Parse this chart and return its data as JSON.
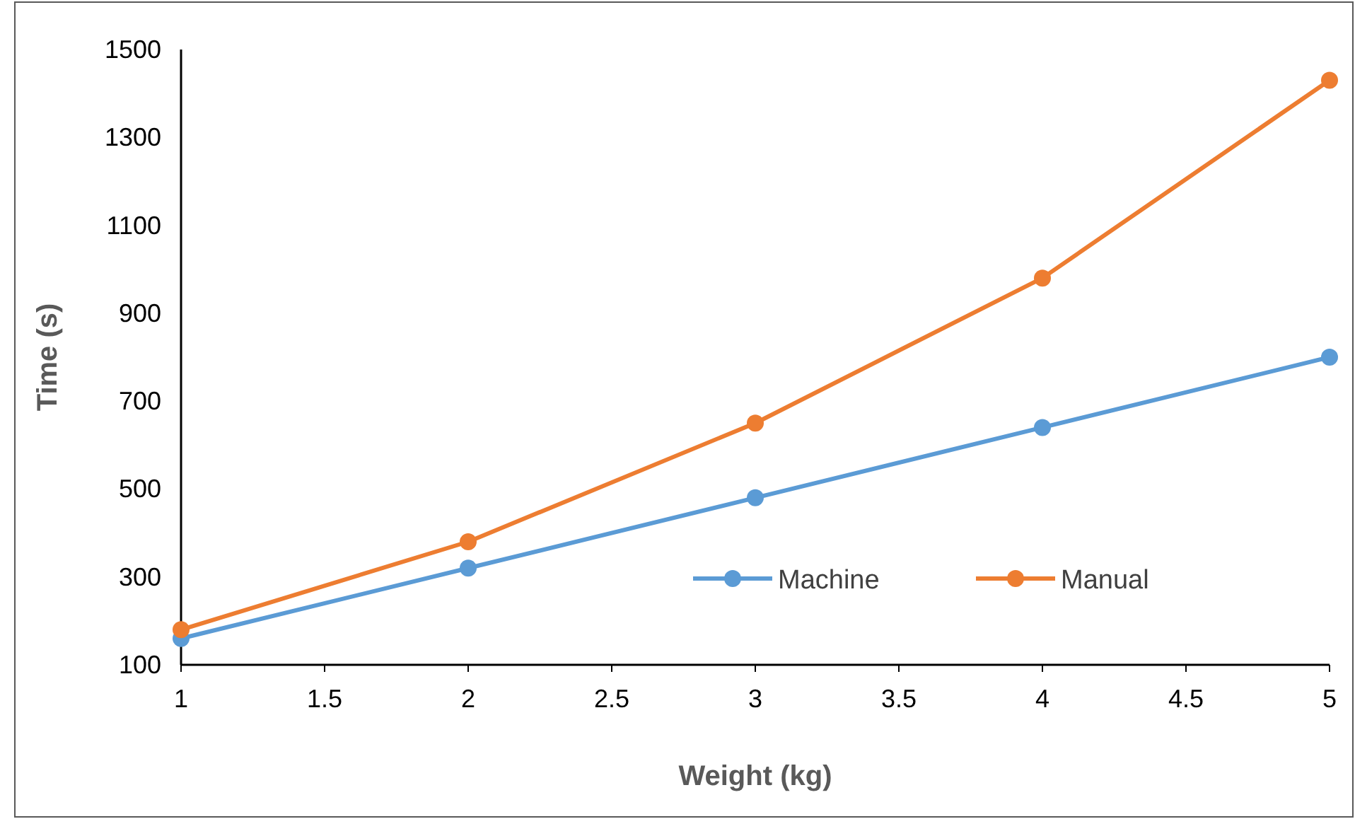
{
  "chart_data": {
    "type": "line",
    "xlabel": "Weight (kg)",
    "ylabel": "Time (s)",
    "x": [
      1,
      2,
      3,
      4,
      5
    ],
    "series": [
      {
        "name": "Machine",
        "color": "#5b9bd5",
        "values": [
          160,
          320,
          480,
          640,
          800
        ]
      },
      {
        "name": "Manual",
        "color": "#ed7d31",
        "values": [
          180,
          380,
          650,
          980,
          1430
        ]
      }
    ],
    "xlim": [
      1,
      5
    ],
    "xticks": [
      1,
      1.5,
      2,
      2.5,
      3,
      3.5,
      4,
      4.5,
      5
    ],
    "ylim": [
      100,
      1500
    ],
    "yticks": [
      100,
      300,
      500,
      700,
      900,
      1100,
      1300,
      1500
    ],
    "grid": false,
    "legend": "bottom right",
    "marker": "circle",
    "line_style": "solid"
  }
}
